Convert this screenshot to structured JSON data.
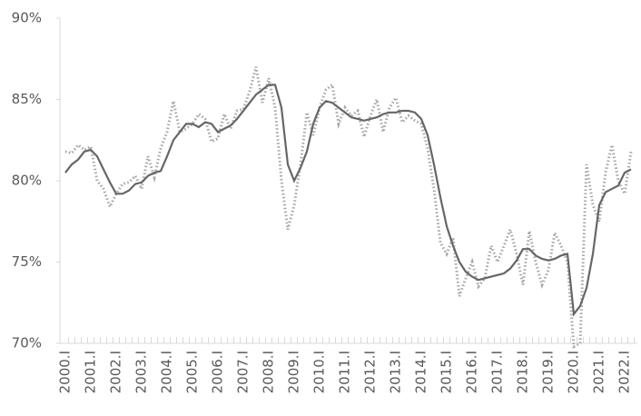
{
  "chart_data": {
    "type": "line",
    "categories": [
      "2000.I",
      null,
      null,
      null,
      "2001.I",
      null,
      null,
      null,
      "2002.I",
      null,
      null,
      null,
      "2003.I",
      null,
      null,
      null,
      "2004.I",
      null,
      null,
      null,
      "2005.I",
      null,
      null,
      null,
      "2006.I",
      null,
      null,
      null,
      "2007.I",
      null,
      null,
      null,
      "2008.I",
      null,
      null,
      null,
      "2009.I",
      null,
      null,
      null,
      "2010.I",
      null,
      null,
      null,
      "2011.I",
      null,
      null,
      null,
      "2012.I",
      null,
      null,
      null,
      "2013.I",
      null,
      null,
      null,
      "2014.I",
      null,
      null,
      null,
      "2015.I",
      null,
      null,
      null,
      "2016.I",
      null,
      null,
      null,
      "2017.I",
      null,
      null,
      null,
      "2018.I",
      null,
      null,
      null,
      "2019.I",
      null,
      null,
      null,
      "2020.I",
      null,
      null,
      null,
      "2021.I",
      null,
      null,
      null,
      "2022.I",
      null
    ],
    "series": [
      {
        "color": "#a6a6a6",
        "line_style": "dotted",
        "values": [
          81.8,
          81.7,
          82.2,
          81.9,
          82.1,
          80.0,
          79.5,
          78.4,
          79.2,
          79.8,
          79.9,
          80.3,
          79.5,
          81.5,
          80.2,
          82.0,
          83.0,
          84.9,
          83.0,
          83.2,
          83.5,
          84.1,
          83.8,
          82.4,
          82.6,
          84.1,
          83.2,
          84.3,
          84.4,
          85.5,
          87.0,
          84.8,
          86.3,
          84.5,
          80.0,
          77.0,
          78.5,
          81.0,
          84.2,
          82.8,
          84.5,
          85.6,
          85.9,
          83.5,
          84.5,
          84.0,
          84.3,
          82.7,
          84.0,
          85.0,
          83.0,
          84.5,
          85.1,
          83.6,
          84.0,
          83.7,
          83.5,
          82.0,
          79.5,
          76.2,
          75.5,
          76.5,
          72.9,
          74.0,
          75.0,
          73.5,
          74.0,
          76.0,
          75.0,
          76.0,
          77.0,
          75.5,
          73.6,
          76.9,
          75.0,
          73.6,
          74.5,
          76.8,
          76.0,
          75.0,
          69.8,
          70.0,
          81.0,
          78.5,
          77.5,
          80.5,
          82.2,
          80.0,
          79.2,
          81.8
        ]
      },
      {
        "color": "#666666",
        "line_style": "solid",
        "values": [
          80.5,
          81.0,
          81.3,
          81.8,
          81.9,
          81.5,
          80.7,
          79.9,
          79.2,
          79.2,
          79.4,
          79.8,
          79.9,
          80.3,
          80.5,
          80.6,
          81.5,
          82.5,
          83.0,
          83.5,
          83.5,
          83.3,
          83.6,
          83.5,
          83.0,
          83.2,
          83.4,
          83.8,
          84.3,
          84.8,
          85.3,
          85.6,
          85.9,
          85.9,
          84.5,
          81.0,
          80.0,
          80.8,
          81.8,
          83.5,
          84.5,
          84.9,
          84.8,
          84.5,
          84.2,
          83.9,
          83.8,
          83.7,
          83.8,
          83.9,
          84.1,
          84.2,
          84.2,
          84.3,
          84.3,
          84.2,
          83.8,
          82.8,
          81.0,
          79.0,
          77.2,
          76.0,
          75.0,
          74.4,
          74.1,
          73.9,
          74.0,
          74.1,
          74.2,
          74.3,
          74.6,
          75.1,
          75.8,
          75.8,
          75.4,
          75.2,
          75.1,
          75.2,
          75.4,
          75.5,
          71.8,
          72.3,
          73.4,
          75.5,
          78.5,
          79.3,
          79.5,
          79.7,
          80.5,
          80.7
        ]
      }
    ],
    "ylim": [
      70,
      90
    ],
    "yticks": [
      {
        "value": 70,
        "label": "70%"
      },
      {
        "value": 75,
        "label": "75%"
      },
      {
        "value": 80,
        "label": "80%"
      },
      {
        "value": 85,
        "label": "85%"
      },
      {
        "value": 90,
        "label": "90%"
      }
    ],
    "grid": false
  }
}
